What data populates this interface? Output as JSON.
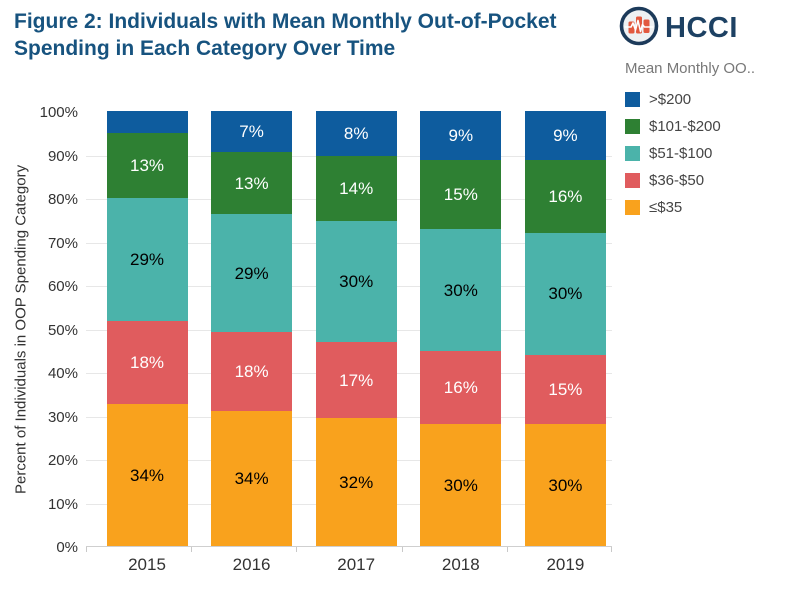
{
  "header": {
    "title_line1": "Figure 2: Individuals with Mean Monthly Out-of-Pocket",
    "title_line2": "Spending in Each Category Over Time",
    "logo_text": "HCCI"
  },
  "legend": {
    "title": "Mean Monthly OO..",
    "items": [
      {
        "label": ">$200",
        "color": "#0e5c9e"
      },
      {
        "label": "$101-$200",
        "color": "#2e8033"
      },
      {
        "label": "$51-$100",
        "color": "#4bb3aa"
      },
      {
        "label": "$36-$50",
        "color": "#e05c5e"
      },
      {
        "label": "≤$35",
        "color": "#f9a21d"
      }
    ]
  },
  "chart_data": {
    "type": "bar",
    "subtype": "stacked-percent",
    "title": "Figure 2: Individuals with Mean Monthly Out-of-Pocket Spending in Each Category Over Time",
    "xlabel": "",
    "ylabel": "Percent of Individuals in OOP Spending Category",
    "ylim": [
      0,
      100
    ],
    "grid": true,
    "legend_position": "right",
    "legend_title": "Mean Monthly OO..",
    "categories": [
      "2015",
      "2016",
      "2017",
      "2018",
      "2019"
    ],
    "y_ticks": [
      "100%",
      "90%",
      "80%",
      "70%",
      "60%",
      "50%",
      "40%",
      "30%",
      "20%",
      "10%",
      "0%"
    ],
    "series": [
      {
        "name": ">$200",
        "color": "#0e5c9e",
        "label_color": "#ffffff",
        "values": [
          6,
          7,
          8,
          9,
          9
        ],
        "labels": [
          "",
          "7%",
          "8%",
          "9%",
          "9%"
        ]
      },
      {
        "name": "$101-$200",
        "color": "#2e8033",
        "label_color": "#ffffff",
        "values": [
          13,
          13,
          14,
          15,
          16
        ],
        "labels": [
          "13%",
          "13%",
          "14%",
          "15%",
          "16%"
        ]
      },
      {
        "name": "$51-$100",
        "color": "#4bb3aa",
        "label_color": "#000000",
        "values": [
          29,
          29,
          30,
          30,
          30
        ],
        "labels": [
          "29%",
          "29%",
          "30%",
          "30%",
          "30%"
        ]
      },
      {
        "name": "$36-$50",
        "color": "#e05c5e",
        "label_color": "#ffffff",
        "values": [
          18,
          18,
          17,
          16,
          15
        ],
        "labels": [
          "18%",
          "18%",
          "17%",
          "16%",
          "15%"
        ]
      },
      {
        "name": "≤$35",
        "color": "#f9a21d",
        "label_color": "#000000",
        "values": [
          34,
          34,
          32,
          30,
          30
        ],
        "labels": [
          "34%",
          "34%",
          "32%",
          "30%",
          "30%"
        ]
      }
    ]
  }
}
